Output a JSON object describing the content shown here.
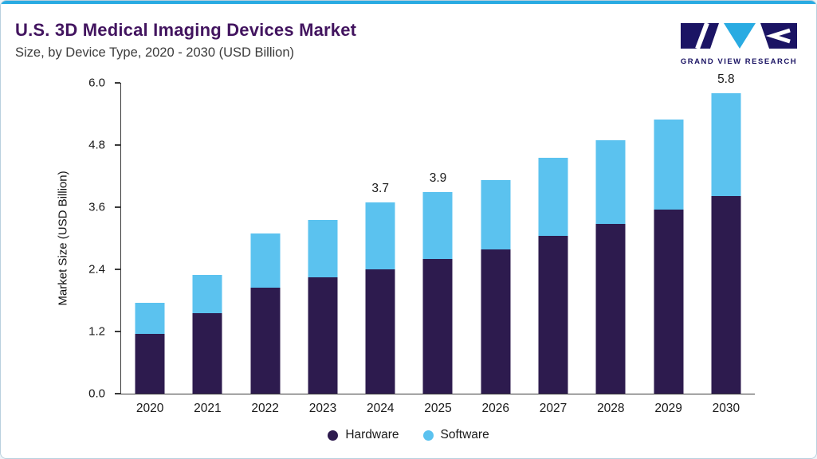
{
  "header": {
    "title": "U.S. 3D Medical Imaging Devices Market",
    "subtitle": "Size, by Device Type, 2020 - 2030 (USD Billion)",
    "logo_text": "GRAND VIEW RESEARCH"
  },
  "colors": {
    "accent_line": "#29ABE2",
    "title_text": "#42145F",
    "hardware": "#2D1B4E",
    "software": "#5BC2EF",
    "logo_navy": "#1B1464",
    "card_border": "#B9D0DE",
    "axis": "#3A3A3A"
  },
  "chart_data": {
    "type": "bar",
    "stacked": true,
    "title": "U.S. 3D Medical Imaging Devices Market Size, by Device Type, 2020 - 2030 (USD Billion)",
    "categories": [
      "2020",
      "2021",
      "2022",
      "2023",
      "2024",
      "2025",
      "2026",
      "2027",
      "2028",
      "2029",
      "2030"
    ],
    "series": [
      {
        "name": "Hardware",
        "color": "#2D1B4E",
        "values": [
          1.15,
          1.55,
          2.05,
          2.25,
          2.4,
          2.6,
          2.78,
          3.05,
          3.27,
          3.55,
          3.82
        ]
      },
      {
        "name": "Software",
        "color": "#5BC2EF",
        "values": [
          0.6,
          0.75,
          1.05,
          1.1,
          1.3,
          1.3,
          1.35,
          1.5,
          1.63,
          1.75,
          1.98
        ]
      }
    ],
    "totals": [
      1.75,
      2.3,
      3.1,
      3.35,
      3.7,
      3.9,
      4.13,
      4.55,
      4.9,
      5.3,
      5.8
    ],
    "bar_labels": [
      "",
      "",
      "",
      "",
      "3.7",
      "3.9",
      "",
      "",
      "",
      "",
      "5.8"
    ],
    "xlabel": "",
    "ylabel": "Market Size (USD Billion)",
    "ylim": [
      0,
      6
    ],
    "yticks": [
      "0.0",
      "1.2",
      "2.4",
      "3.6",
      "4.8",
      "6.0"
    ],
    "legend_position": "bottom",
    "grid": false
  }
}
